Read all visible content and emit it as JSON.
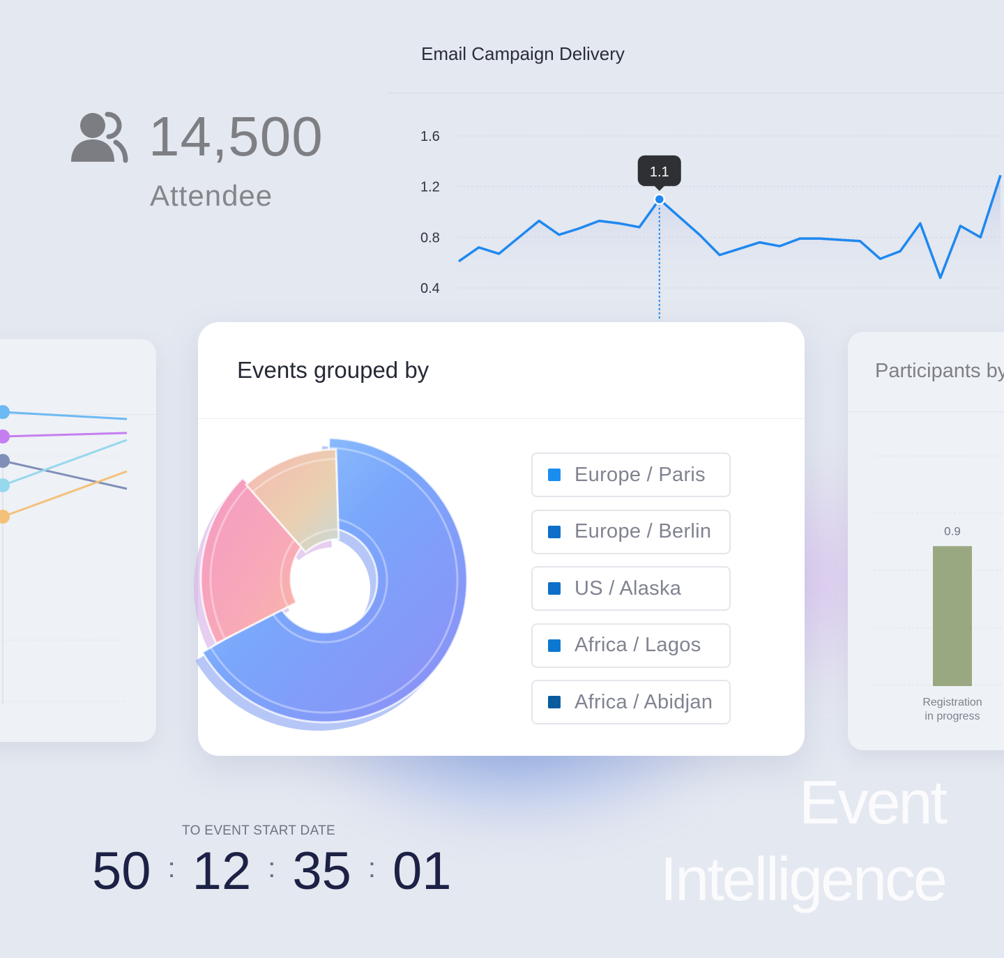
{
  "attendee": {
    "count": "14,500",
    "label": "Attendee",
    "icon": "users-icon"
  },
  "email_campaign": {
    "title": "Email Campaign Delivery",
    "tooltip": "1.1",
    "chart_data": {
      "type": "line",
      "title": "Email Campaign Delivery",
      "y_ticks": [
        "1.6",
        "1.2",
        "0.8",
        "0.4"
      ],
      "ylim": [
        0.4,
        1.6
      ],
      "grid": true,
      "series": [
        {
          "color": "#1e88f0",
          "values": [
            0.61,
            0.72,
            0.67,
            0.8,
            0.93,
            0.82,
            0.87,
            0.93,
            0.91,
            0.88,
            1.1,
            0.96,
            0.82,
            0.66,
            0.71,
            0.76,
            0.73,
            0.79,
            0.79,
            0.78,
            0.77,
            0.63,
            0.69,
            0.91,
            0.48,
            0.89,
            0.8,
            1.29
          ]
        }
      ],
      "highlight_index": 10
    }
  },
  "events": {
    "title": "Events grouped by",
    "legend": [
      {
        "label": "Europe / Paris",
        "color": "#1a8ef0"
      },
      {
        "label": "Europe / Berlin",
        "color": "#0d6fc7"
      },
      {
        "label": "US / Alaska",
        "color": "#0d6fc7"
      },
      {
        "label": "Africa / Lagos",
        "color": "#0d78d0"
      },
      {
        "label": "Africa / Abidjan",
        "color": "#0a5a9e"
      }
    ],
    "chart_data": {
      "type": "pie",
      "variant": "3d-donut",
      "slices": [
        {
          "share": 0.67,
          "color": "#78a8f8"
        },
        {
          "share": 0.21,
          "color": "#f5a8c4"
        },
        {
          "share": 0.12,
          "color": "#f2c4a8"
        }
      ]
    }
  },
  "left_chart": {
    "chart_data": {
      "type": "line",
      "series": [
        {
          "color": "#6cb9f3",
          "values": [
            0.85,
            0.83
          ]
        },
        {
          "color": "#c57ef0",
          "values": [
            0.78,
            0.79
          ]
        },
        {
          "color": "#7f8fb8",
          "values": [
            0.71,
            0.63
          ]
        },
        {
          "color": "#96d8ec",
          "values": [
            0.64,
            0.77
          ]
        },
        {
          "color": "#f4c17a",
          "values": [
            0.55,
            0.68
          ]
        }
      ]
    }
  },
  "participants": {
    "title": "Participants by",
    "chart_data": {
      "type": "bar",
      "categories": [
        "Registration in progress"
      ],
      "values": [
        0.9
      ],
      "value_labels": [
        "0.9"
      ],
      "color": "#9aa882"
    },
    "bar_label_line1": "Registration",
    "bar_label_line2": "in progress"
  },
  "countdown": {
    "label": "TO EVENT START DATE",
    "days": "50",
    "hours": "12",
    "minutes": "35",
    "seconds": "01",
    "separator": ":"
  },
  "brand": {
    "line1": "Event",
    "line2": "Intelligence"
  }
}
